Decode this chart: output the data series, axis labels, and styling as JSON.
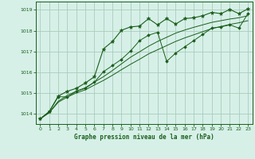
{
  "title": "Graphe pression niveau de la mer (hPa)",
  "bg_color": "#d6f0e8",
  "grid_color": "#aaccbb",
  "line_color": "#1a5e1a",
  "ylim": [
    1013.5,
    1019.4
  ],
  "xlim": [
    -0.5,
    23.5
  ],
  "yticks": [
    1014,
    1015,
    1016,
    1017,
    1018,
    1019
  ],
  "xticks": [
    0,
    1,
    2,
    3,
    4,
    5,
    6,
    7,
    8,
    9,
    10,
    11,
    12,
    13,
    14,
    15,
    16,
    17,
    18,
    19,
    20,
    21,
    22,
    23
  ],
  "series_smooth1": [
    1013.75,
    1014.05,
    1014.55,
    1014.8,
    1015.0,
    1015.15,
    1015.38,
    1015.6,
    1015.85,
    1016.12,
    1016.38,
    1016.62,
    1016.88,
    1017.08,
    1017.28,
    1017.48,
    1017.65,
    1017.8,
    1017.95,
    1018.1,
    1018.2,
    1018.3,
    1018.38,
    1018.48
  ],
  "series_smooth2": [
    1013.75,
    1014.05,
    1014.6,
    1014.88,
    1015.08,
    1015.25,
    1015.52,
    1015.78,
    1016.08,
    1016.4,
    1016.72,
    1016.98,
    1017.25,
    1017.48,
    1017.68,
    1017.88,
    1018.03,
    1018.16,
    1018.28,
    1018.4,
    1018.48,
    1018.56,
    1018.62,
    1018.72
  ],
  "series_main": [
    1013.75,
    1014.1,
    1014.82,
    1014.8,
    1015.08,
    1015.22,
    1015.52,
    1016.02,
    1016.32,
    1016.62,
    1017.02,
    1017.52,
    1017.78,
    1017.92,
    1016.52,
    1016.92,
    1017.22,
    1017.52,
    1017.82,
    1018.12,
    1018.18,
    1018.28,
    1018.12,
    1018.82
  ],
  "series_zigzag": [
    1013.75,
    1014.1,
    1014.85,
    1015.08,
    1015.22,
    1015.48,
    1015.78,
    1017.12,
    1017.48,
    1018.02,
    1018.18,
    1018.22,
    1018.58,
    1018.28,
    1018.58,
    1018.32,
    1018.58,
    1018.62,
    1018.72,
    1018.88,
    1018.82,
    1019.02,
    1018.82,
    1019.05
  ]
}
